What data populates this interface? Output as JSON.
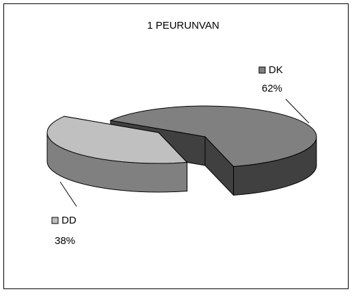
{
  "chart_data": {
    "type": "pie",
    "title": "1 PEURUNVAN",
    "categories": [
      "DK",
      "DD"
    ],
    "values": [
      62,
      38
    ],
    "value_labels": [
      "62%",
      "38%"
    ],
    "colors": [
      "#808080",
      "#c0c0c0"
    ],
    "side_colors": [
      "#404040",
      "#808080"
    ]
  }
}
